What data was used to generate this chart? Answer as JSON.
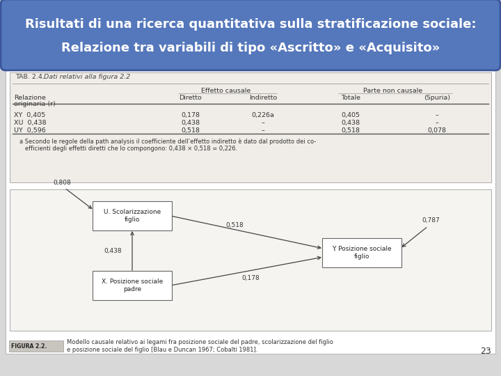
{
  "title_line1": "Risultati di una ricerca quantitativa sulla stratificazione sociale:",
  "title_line2": "Relazione tra variabili di tipo «Ascritto» e «Acquisito»",
  "title_bg": "#5577bb",
  "title_fg": "#ffffff",
  "bg_color": "#d8d8d8",
  "content_bg": "#f0eeeb",
  "tab_title_normal": "TAB. 2.4.",
  "tab_title_italic": " Dati relativi alla figura 2.2",
  "col_header1": "Relazione\noriginaria (r)",
  "col_header_ec": "Effetto causale",
  "col_header_dir": "Diretto",
  "col_header_ind": "Indiretto",
  "col_header_pnc": "Parte non causale",
  "col_header_tot": "Totale",
  "col_header_spu": "(Spuria)",
  "row1": [
    "XY  0,405",
    "0,178",
    "0,226a",
    "0,405",
    "–"
  ],
  "row2": [
    "XU  0,438",
    "0,438",
    "–",
    "0,438",
    "–"
  ],
  "row3": [
    "UY  0,596",
    "0,518",
    "–",
    "0,518",
    "0,078"
  ],
  "footnote_a": "a Secondo le regole della ",
  "footnote_italic": "path analysis",
  "footnote_b": " il coefficiente dell’effetto indiretto è dato dal prodotto dei co-\nefficienti degli effetti diretti che lo compongono: 0,438 × 0,518 = 0,226.",
  "box_U": "U. Scolarizzazione\nfiglio",
  "box_X": "X. Posizione sociale\npadre",
  "box_Y": "Y. Posizione sociale\nfiglio",
  "val_808": "0,808",
  "val_518": "0,518",
  "val_438": "0,438",
  "val_178": "0,178",
  "val_787": "0,787",
  "fig_label": "FIGURA 2.2.",
  "fig_caption": "Modello causale relativo ai legami fra posizione sociale del padre, scolarizzazione del figlio\ne posizione sociale del figlio [Blau e Duncan 1967; Cobalti 1981].",
  "page_num": "23"
}
